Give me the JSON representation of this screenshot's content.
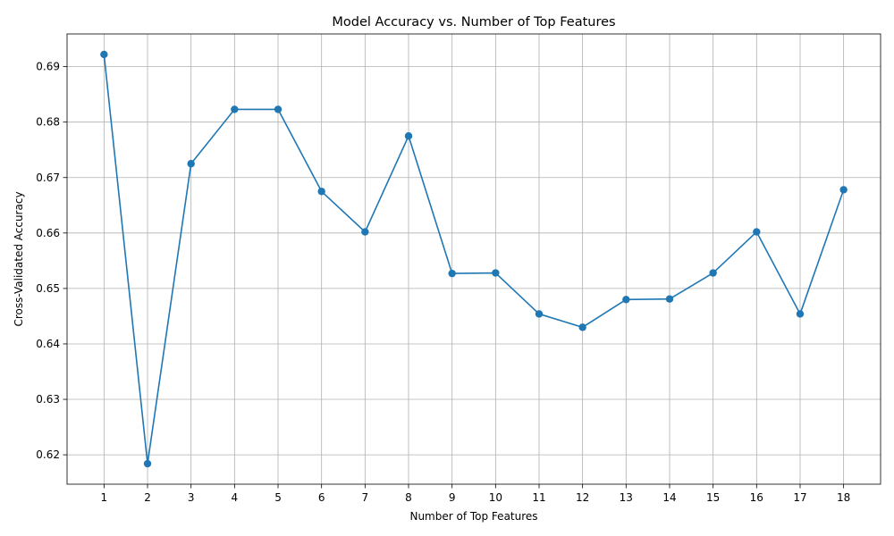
{
  "chart_data": {
    "type": "line",
    "title": "Model Accuracy vs. Number of Top Features",
    "xlabel": "Number of Top Features",
    "ylabel": "Cross-Validated Accuracy",
    "x": [
      1,
      2,
      3,
      4,
      5,
      6,
      7,
      8,
      9,
      10,
      11,
      12,
      13,
      14,
      15,
      16,
      17,
      18
    ],
    "x_tick_labels": [
      "1",
      "2",
      "3",
      "4",
      "5",
      "6",
      "7",
      "8",
      "9",
      "10",
      "11",
      "12",
      "13",
      "14",
      "15",
      "16",
      "17",
      "18"
    ],
    "series": [
      {
        "values": [
          0.6922,
          0.6184,
          0.6725,
          0.6823,
          0.6823,
          0.6675,
          0.6602,
          0.6775,
          0.6527,
          0.6528,
          0.6454,
          0.643,
          0.648,
          0.6481,
          0.6528,
          0.6602,
          0.6454,
          0.6678
        ],
        "color": "#1f77b4",
        "marker": "circle"
      }
    ],
    "y_ticks": [
      0.62,
      0.63,
      0.64,
      0.65,
      0.66,
      0.67,
      0.68,
      0.69
    ],
    "y_tick_labels": [
      "0.62",
      "0.63",
      "0.64",
      "0.65",
      "0.66",
      "0.67",
      "0.68",
      "0.69"
    ],
    "xlim": [
      0.15,
      18.85
    ],
    "ylim": [
      0.6147,
      0.6959
    ],
    "grid": true,
    "legend": "none"
  }
}
